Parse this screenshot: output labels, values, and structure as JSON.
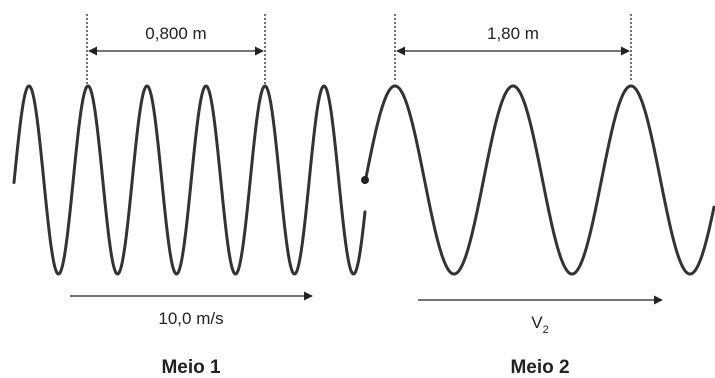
{
  "diagram": {
    "medium1": {
      "wavelength_label": "0,800 m",
      "speed_label": "10,0 m/s",
      "name": "Meio 1"
    },
    "medium2": {
      "wavelength_label": "1,80 m",
      "speed_symbol": "V",
      "speed_subscript": "2",
      "name": "Meio 2"
    },
    "colors": {
      "wave": "#333333",
      "ink": "#222222",
      "background": "#ffffff"
    }
  }
}
